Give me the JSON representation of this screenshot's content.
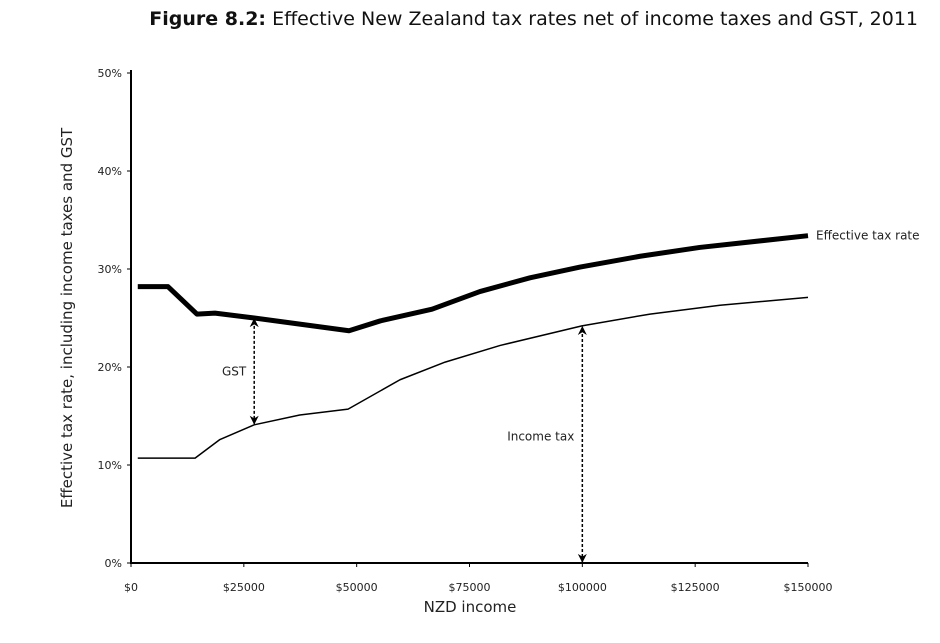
{
  "title_bold": "Figure 8.2:",
  "title_rest": " Effective New Zealand tax rates net of income taxes and GST, 2011",
  "chart_data": {
    "type": "line",
    "xlabel": "NZD income",
    "ylabel": "Effective tax rate, including income taxes and GST",
    "xlim": [
      0,
      150000
    ],
    "ylim": [
      0,
      50
    ],
    "x_ticks": [
      0,
      25000,
      50000,
      75000,
      100000,
      125000,
      150000
    ],
    "x_tick_labels": [
      "$0",
      "$25000",
      "$50000",
      "$75000",
      "$100000",
      "$125000",
      "$150000"
    ],
    "y_ticks": [
      0,
      10,
      20,
      30,
      40,
      50
    ],
    "y_tick_labels": [
      "0%",
      "10%",
      "20%",
      "30%",
      "40%",
      "50%"
    ],
    "grid": false,
    "series": [
      {
        "name": "Effective tax rate",
        "color": "#000000",
        "style": "thick",
        "x": [
          1500,
          8200,
          14600,
          18600,
          27300,
          48300,
          55200,
          66700,
          77300,
          88400,
          99500,
          112800,
          126000,
          150000
        ],
        "y": [
          28.2,
          28.2,
          25.4,
          25.5,
          25.0,
          23.7,
          24.7,
          25.9,
          27.7,
          29.1,
          30.2,
          31.3,
          32.2,
          33.4
        ]
      },
      {
        "color": "#000000",
        "style": "thin",
        "x": [
          1500,
          14200,
          19700,
          27300,
          37400,
          48100,
          59600,
          69600,
          81800,
          99900,
          115000,
          130500,
          150000
        ],
        "y": [
          10.7,
          10.7,
          12.6,
          14.1,
          15.1,
          15.7,
          18.7,
          20.5,
          22.2,
          24.2,
          25.4,
          26.3,
          27.1
        ]
      }
    ],
    "annotations": [
      {
        "text": "GST",
        "x": 27300,
        "from": 14.1,
        "to": 25.0
      },
      {
        "text": "Income tax",
        "x": 100000,
        "from": 0,
        "to": 24.2
      }
    ]
  }
}
